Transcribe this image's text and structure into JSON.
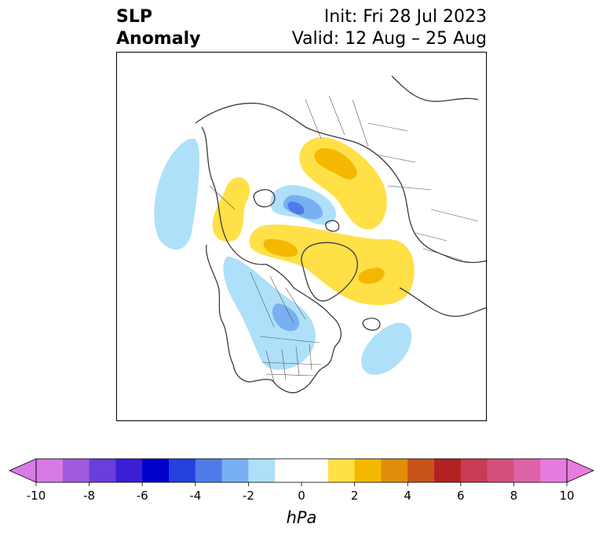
{
  "title": {
    "line1": "SLP",
    "line2": "Anomaly",
    "init": "Init: Fri 28 Jul 2023",
    "valid": "Valid: 12 Aug – 25 Aug"
  },
  "colorbar": {
    "unit": "hPa",
    "tick_labels": [
      "-10",
      "-8",
      "-6",
      "-4",
      "-2",
      "0",
      "2",
      "4",
      "6",
      "8",
      "10"
    ],
    "colors": [
      "#d77ae6",
      "#a05ae0",
      "#6b3ddb",
      "#3a1fd6",
      "#0000cc",
      "#2440dd",
      "#4f7be8",
      "#78b0f2",
      "#aee0fa",
      "#ffffff",
      "#ffffff",
      "#ffe047",
      "#f5b800",
      "#e08e0b",
      "#c9541a",
      "#b22222",
      "#c73b55",
      "#d4507a",
      "#de62a8",
      "#e87be0"
    ],
    "extend_min_color": "#d77ae6",
    "extend_max_color": "#e87be0"
  }
}
